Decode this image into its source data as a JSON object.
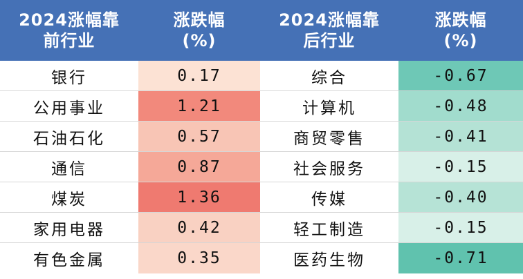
{
  "header": {
    "col1_line1": "2024涨幅靠",
    "col1_line2": "前行业",
    "col2_line1": "涨跌幅",
    "col2_line2": "(%)",
    "col3_line1": "2024涨幅靠",
    "col3_line2": "后行业",
    "col4_line1": "涨跌幅",
    "col4_line2": "(%)"
  },
  "rows": [
    {
      "top_industry": "银行",
      "top_change": "0.17",
      "top_color": "#fce2d4",
      "bottom_industry": "综合",
      "bottom_change": "-0.67",
      "bottom_color": "#6ec8b6"
    },
    {
      "top_industry": "公用事业",
      "top_change": "1.21",
      "top_color": "#f2897c",
      "bottom_industry": "计算机",
      "bottom_change": "-0.48",
      "bottom_color": "#a1dccd"
    },
    {
      "top_industry": "石油石化",
      "top_change": "0.57",
      "top_color": "#f8c5b5",
      "bottom_industry": "商贸零售",
      "bottom_change": "-0.41",
      "bottom_color": "#b4e2d5"
    },
    {
      "top_industry": "通信",
      "top_change": "0.87",
      "top_color": "#f5a898",
      "bottom_industry": "社会服务",
      "bottom_change": "-0.15",
      "bottom_color": "#d8f0e8"
    },
    {
      "top_industry": "煤炭",
      "top_change": "1.36",
      "top_color": "#ef7a70",
      "bottom_industry": "传媒",
      "bottom_change": "-0.40",
      "bottom_color": "#b6e3d6"
    },
    {
      "top_industry": "家用电器",
      "top_change": "0.42",
      "top_color": "#f9d1c2",
      "bottom_industry": "轻工制造",
      "bottom_change": "-0.15",
      "bottom_color": "#d8f0e8"
    },
    {
      "top_industry": "有色金属",
      "top_change": "0.35",
      "top_color": "#fad7c9",
      "bottom_industry": "医药生物",
      "bottom_change": "-0.71",
      "bottom_color": "#60c2ae"
    }
  ]
}
